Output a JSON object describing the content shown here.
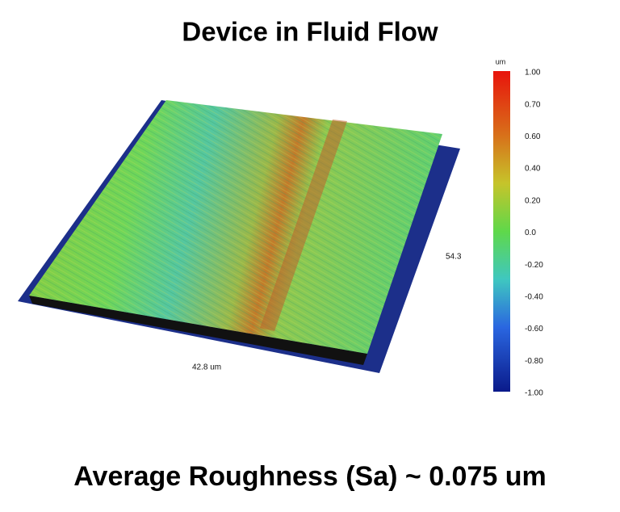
{
  "title": "Device in Fluid Flow",
  "surface": {
    "x_size_label": "42.8 um",
    "y_size_label": "54.3"
  },
  "colorbar": {
    "unit": "um",
    "labels": [
      "1.00",
      "0.70",
      "0.60",
      "0.40",
      "0.20",
      "0.0",
      "-0.20",
      "-0.40",
      "-0.60",
      "-0.80",
      "-1.00"
    ]
  },
  "caption": "Average Roughness (Sa) ~ 0.075 um"
}
